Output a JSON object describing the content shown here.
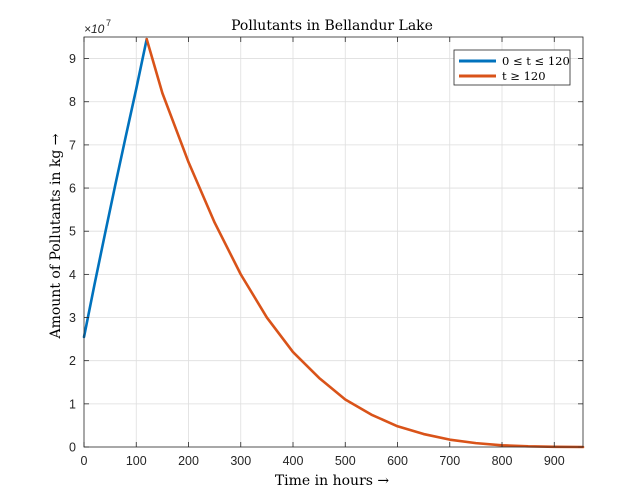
{
  "chart_data": {
    "type": "line",
    "title": "Pollutants in Bellandur Lake",
    "xlabel": "Time in hours →",
    "ylabel": "Amount of Pollutants in kg →",
    "y_exponent_label": "×10",
    "y_exponent_power": "7",
    "xlim": [
      0,
      955
    ],
    "ylim": [
      0,
      9.5
    ],
    "y_scale_factor": 10000000,
    "x_ticks": [
      0,
      100,
      200,
      300,
      400,
      500,
      600,
      700,
      800,
      900
    ],
    "x_tick_labels": [
      "0",
      "100",
      "200",
      "300",
      "400",
      "500",
      "600",
      "700",
      "800",
      "900"
    ],
    "y_ticks": [
      0,
      1,
      2,
      3,
      4,
      5,
      6,
      7,
      8,
      9
    ],
    "y_tick_labels": [
      "0",
      "1",
      "2",
      "3",
      "4",
      "5",
      "6",
      "7",
      "8",
      "9"
    ],
    "grid": true,
    "legend_position": "top-right",
    "series": [
      {
        "name": "0 ≤ t ≤ 120",
        "color": "#0072BD",
        "x": [
          0,
          20,
          40,
          60,
          80,
          100,
          120
        ],
        "y": [
          2.55,
          3.76,
          4.93,
          6.08,
          7.2,
          8.3,
          9.45
        ]
      },
      {
        "name": "t ≥ 120",
        "color": "#D95319",
        "x": [
          120,
          150,
          200,
          250,
          300,
          350,
          400,
          450,
          500,
          550,
          600,
          650,
          700,
          750,
          800,
          850,
          900,
          955
        ],
        "y": [
          9.45,
          8.2,
          6.6,
          5.2,
          4.0,
          3.0,
          2.2,
          1.6,
          1.1,
          0.75,
          0.48,
          0.3,
          0.17,
          0.09,
          0.04,
          0.015,
          0.005,
          0.0
        ]
      }
    ]
  }
}
